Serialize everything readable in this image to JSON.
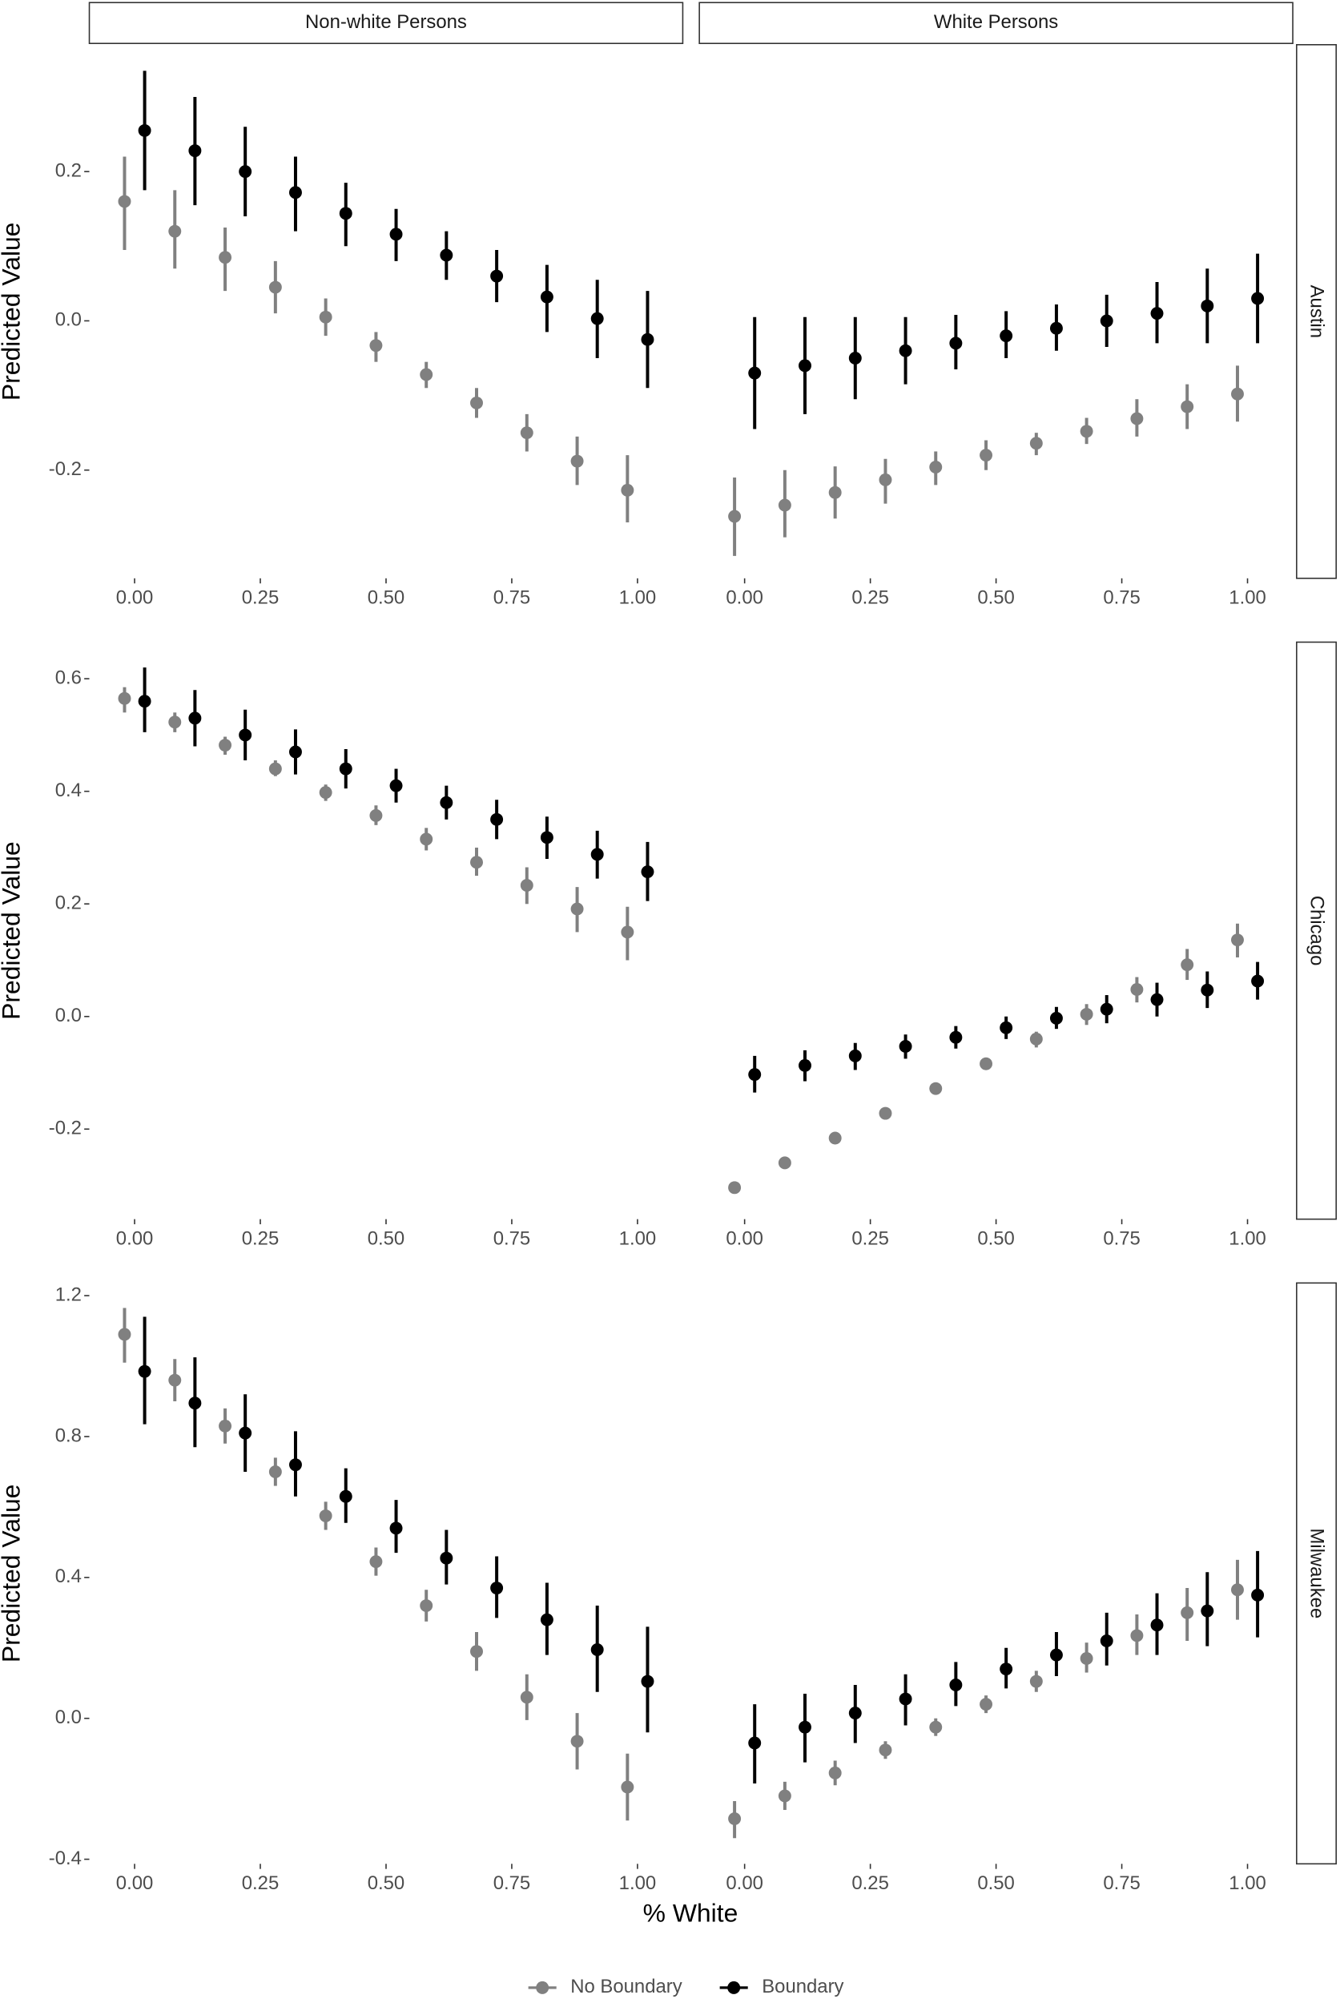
{
  "chart_data": {
    "type": "pointrange",
    "columns": [
      "Non-white Persons",
      "White Persons"
    ],
    "x_label": "% White",
    "y_label": "Predicted Value",
    "x": [
      0,
      0.1,
      0.2,
      0.3,
      0.4,
      0.5,
      0.6,
      0.7,
      0.8,
      0.9,
      1.0
    ],
    "xlim": [
      -0.09,
      1.09
    ],
    "xticks": [
      {
        "value": 0,
        "label": "0.00"
      },
      {
        "value": 0.25,
        "label": "0.25"
      },
      {
        "value": 0.5,
        "label": "0.50"
      },
      {
        "value": 0.75,
        "label": "0.75"
      },
      {
        "value": 1,
        "label": "1.00"
      }
    ],
    "series": [
      {
        "name": "No Boundary",
        "color": "#808080"
      },
      {
        "name": "Boundary",
        "color": "#000000"
      }
    ],
    "rows": [
      {
        "name": "Austin",
        "ylim": [
          -0.345,
          0.37
        ],
        "yticks": [
          -0.2,
          {
            "value": 0,
            "label": "0.0"
          },
          0.2
        ],
        "panels": [
          {
            "series": [
              {
                "values": [
                  0.16,
                  0.12,
                  0.085,
                  0.045,
                  0.005,
                  -0.033,
                  -0.072,
                  -0.11,
                  -0.15,
                  -0.188,
                  -0.227
                ],
                "low": [
                  0.095,
                  0.07,
                  0.04,
                  0.01,
                  -0.02,
                  -0.055,
                  -0.09,
                  -0.13,
                  -0.175,
                  -0.22,
                  -0.27
                ],
                "high": [
                  0.22,
                  0.175,
                  0.125,
                  0.08,
                  0.03,
                  -0.015,
                  -0.055,
                  -0.09,
                  -0.125,
                  -0.155,
                  -0.18
                ]
              },
              {
                "values": [
                  0.255,
                  0.228,
                  0.2,
                  0.172,
                  0.144,
                  0.116,
                  0.088,
                  0.06,
                  0.032,
                  0.003,
                  -0.025
                ],
                "low": [
                  0.175,
                  0.155,
                  0.14,
                  0.12,
                  0.1,
                  0.08,
                  0.055,
                  0.025,
                  -0.015,
                  -0.05,
                  -0.09
                ],
                "high": [
                  0.335,
                  0.3,
                  0.26,
                  0.22,
                  0.185,
                  0.15,
                  0.12,
                  0.095,
                  0.075,
                  0.055,
                  0.04
                ]
              }
            ]
          },
          {
            "series": [
              {
                "values": [
                  -0.262,
                  -0.247,
                  -0.23,
                  -0.213,
                  -0.196,
                  -0.18,
                  -0.164,
                  -0.148,
                  -0.131,
                  -0.115,
                  -0.098
                ],
                "low": [
                  -0.315,
                  -0.29,
                  -0.265,
                  -0.245,
                  -0.22,
                  -0.2,
                  -0.18,
                  -0.165,
                  -0.155,
                  -0.145,
                  -0.135
                ],
                "high": [
                  -0.21,
                  -0.2,
                  -0.195,
                  -0.185,
                  -0.175,
                  -0.16,
                  -0.15,
                  -0.13,
                  -0.105,
                  -0.085,
                  -0.06
                ]
              },
              {
                "values": [
                  -0.07,
                  -0.06,
                  -0.05,
                  -0.04,
                  -0.03,
                  -0.02,
                  -0.01,
                  0.0,
                  0.01,
                  0.02,
                  0.03
                ],
                "low": [
                  -0.145,
                  -0.125,
                  -0.105,
                  -0.085,
                  -0.065,
                  -0.05,
                  -0.04,
                  -0.035,
                  -0.03,
                  -0.03,
                  -0.03
                ],
                "high": [
                  0.005,
                  0.005,
                  0.005,
                  0.005,
                  0.008,
                  0.013,
                  0.022,
                  0.035,
                  0.052,
                  0.07,
                  0.09
                ]
              }
            ]
          }
        ]
      },
      {
        "name": "Chicago",
        "ylim": [
          -0.36,
          0.665
        ],
        "yticks": [
          -0.2,
          {
            "value": 0,
            "label": "0.0"
          },
          0.2,
          0.4,
          0.6
        ],
        "panels": [
          {
            "series": [
              {
                "values": [
                  0.565,
                  0.523,
                  0.482,
                  0.44,
                  0.398,
                  0.357,
                  0.315,
                  0.274,
                  0.233,
                  0.191,
                  0.15
                ],
                "low": [
                  0.54,
                  0.505,
                  0.465,
                  0.427,
                  0.383,
                  0.34,
                  0.295,
                  0.25,
                  0.2,
                  0.15,
                  0.1
                ],
                "high": [
                  0.585,
                  0.54,
                  0.497,
                  0.455,
                  0.412,
                  0.375,
                  0.335,
                  0.3,
                  0.265,
                  0.23,
                  0.195
                ]
              },
              {
                "values": [
                  0.56,
                  0.53,
                  0.5,
                  0.47,
                  0.44,
                  0.41,
                  0.38,
                  0.35,
                  0.318,
                  0.288,
                  0.257
                ],
                "low": [
                  0.505,
                  0.48,
                  0.455,
                  0.43,
                  0.405,
                  0.38,
                  0.35,
                  0.315,
                  0.28,
                  0.245,
                  0.205
                ],
                "high": [
                  0.62,
                  0.58,
                  0.545,
                  0.51,
                  0.475,
                  0.44,
                  0.41,
                  0.385,
                  0.355,
                  0.33,
                  0.31
                ]
              }
            ]
          },
          {
            "series": [
              {
                "values": [
                  -0.304,
                  -0.26,
                  -0.216,
                  -0.172,
                  -0.128,
                  -0.084,
                  -0.04,
                  0.004,
                  0.048,
                  0.092,
                  0.136
                ],
                "low": [
                  -0.31,
                  -0.266,
                  -0.222,
                  -0.178,
                  -0.134,
                  -0.092,
                  -0.055,
                  -0.015,
                  0.025,
                  0.065,
                  0.105
                ],
                "high": [
                  -0.298,
                  -0.254,
                  -0.21,
                  -0.166,
                  -0.122,
                  -0.076,
                  -0.027,
                  0.022,
                  0.07,
                  0.12,
                  0.165
                ]
              },
              {
                "values": [
                  -0.103,
                  -0.087,
                  -0.07,
                  -0.053,
                  -0.037,
                  -0.02,
                  -0.003,
                  0.013,
                  0.03,
                  0.047,
                  0.063
                ],
                "low": [
                  -0.135,
                  -0.115,
                  -0.095,
                  -0.075,
                  -0.057,
                  -0.04,
                  -0.022,
                  -0.012,
                  0.0,
                  0.015,
                  0.03
                ],
                "high": [
                  -0.07,
                  -0.06,
                  -0.047,
                  -0.032,
                  -0.017,
                  0.0,
                  0.017,
                  0.038,
                  0.06,
                  0.08,
                  0.097
                ]
              }
            ]
          }
        ]
      },
      {
        "name": "Milwaukee",
        "ylim": [
          -0.413,
          1.236
        ],
        "yticks": [
          -0.4,
          {
            "value": 0,
            "label": "0.0"
          },
          0.4,
          0.8,
          1.2
        ],
        "panels": [
          {
            "series": [
              {
                "values": [
                  1.09,
                  0.96,
                  0.83,
                  0.7,
                  0.575,
                  0.445,
                  0.32,
                  0.19,
                  0.06,
                  -0.065,
                  -0.195
                ],
                "low": [
                  1.01,
                  0.9,
                  0.78,
                  0.66,
                  0.535,
                  0.405,
                  0.275,
                  0.135,
                  -0.005,
                  -0.145,
                  -0.29
                ],
                "high": [
                  1.165,
                  1.02,
                  0.88,
                  0.74,
                  0.615,
                  0.485,
                  0.365,
                  0.245,
                  0.125,
                  0.015,
                  -0.1
                ]
              },
              {
                "values": [
                  0.985,
                  0.895,
                  0.81,
                  0.72,
                  0.63,
                  0.54,
                  0.455,
                  0.37,
                  0.28,
                  0.195,
                  0.105
                ],
                "low": [
                  0.835,
                  0.77,
                  0.7,
                  0.63,
                  0.555,
                  0.47,
                  0.38,
                  0.285,
                  0.18,
                  0.075,
                  -0.04
                ],
                "high": [
                  1.14,
                  1.025,
                  0.92,
                  0.815,
                  0.71,
                  0.62,
                  0.535,
                  0.46,
                  0.385,
                  0.32,
                  0.26
                ]
              }
            ]
          },
          {
            "series": [
              {
                "values": [
                  -0.285,
                  -0.22,
                  -0.155,
                  -0.09,
                  -0.025,
                  0.04,
                  0.105,
                  0.17,
                  0.235,
                  0.3,
                  0.365
                ],
                "low": [
                  -0.34,
                  -0.26,
                  -0.19,
                  -0.115,
                  -0.05,
                  0.015,
                  0.075,
                  0.13,
                  0.18,
                  0.22,
                  0.28
                ],
                "high": [
                  -0.235,
                  -0.18,
                  -0.12,
                  -0.065,
                  0.0,
                  0.065,
                  0.135,
                  0.215,
                  0.295,
                  0.37,
                  0.45
                ]
              },
              {
                "values": [
                  -0.07,
                  -0.025,
                  0.015,
                  0.055,
                  0.095,
                  0.14,
                  0.18,
                  0.22,
                  0.265,
                  0.305,
                  0.35
                ],
                "low": [
                  -0.185,
                  -0.125,
                  -0.07,
                  -0.02,
                  0.035,
                  0.085,
                  0.12,
                  0.15,
                  0.18,
                  0.205,
                  0.23
                ],
                "high": [
                  0.04,
                  0.07,
                  0.095,
                  0.125,
                  0.16,
                  0.2,
                  0.245,
                  0.3,
                  0.355,
                  0.415,
                  0.475
                ]
              }
            ]
          }
        ]
      }
    ]
  }
}
